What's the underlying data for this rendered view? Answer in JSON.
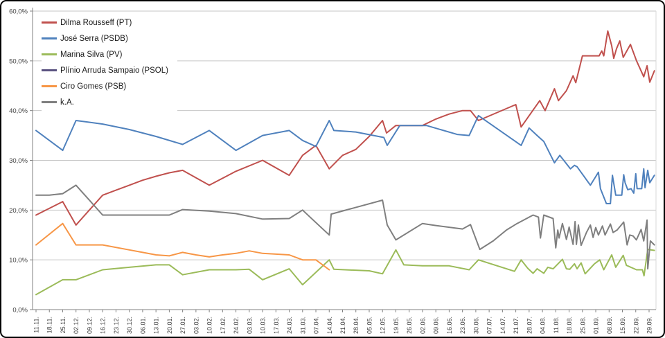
{
  "chart_data": {
    "type": "line",
    "title": "",
    "xlabel": "",
    "ylabel": "",
    "ylim": [
      0,
      60
    ],
    "ytick_step": 10,
    "ytick_labels": [
      "0,0%",
      "10,0%",
      "20,0%",
      "30,0%",
      "40,0%",
      "50,0%",
      "60,0%"
    ],
    "x_tick_rotation": -90,
    "grid": true,
    "legend_position": "top-left",
    "x_tick_labels": [
      "11.11.",
      "18.11.",
      "25.11.",
      "02.12.",
      "09.12.",
      "16.12.",
      "23.12.",
      "30.12.",
      "06.01.",
      "13.01.",
      "20.01.",
      "27.01.",
      "03.02.",
      "10.02.",
      "17.02.",
      "24.02.",
      "03.03.",
      "10.03.",
      "17.03.",
      "24.03.",
      "31.03.",
      "07.04.",
      "14.04.",
      "21.04.",
      "28.04.",
      "05.05.",
      "12.05.",
      "19.05.",
      "26.05.",
      "02.06.",
      "09.06.",
      "16.06.",
      "23.06.",
      "30.06.",
      "07.07.",
      "14.07.",
      "21.07.",
      "28.07.",
      "04.08.",
      "11.08.",
      "18.08.",
      "25.08.",
      "01.09.",
      "08.09.",
      "15.09.",
      "22.09.",
      "29.09."
    ],
    "series": [
      {
        "name": "Dilma Rousseff (PT)",
        "color": "#C0504D",
        "points": [
          [
            0,
            19
          ],
          [
            2,
            21.7
          ],
          [
            3,
            17
          ],
          [
            5,
            23
          ],
          [
            6,
            24
          ],
          [
            7,
            25
          ],
          [
            8,
            26
          ],
          [
            9,
            26.8
          ],
          [
            10,
            27.5
          ],
          [
            11,
            28
          ],
          [
            13,
            25
          ],
          [
            15,
            27.8
          ],
          [
            17,
            30
          ],
          [
            19,
            27
          ],
          [
            20,
            31
          ],
          [
            21,
            33
          ],
          [
            22,
            28.3
          ],
          [
            23,
            31
          ],
          [
            24,
            32.2
          ],
          [
            25,
            34.8
          ],
          [
            26,
            38
          ],
          [
            26.3,
            35.5
          ],
          [
            27,
            37
          ],
          [
            29,
            37
          ],
          [
            30,
            38.3
          ],
          [
            31,
            39.3
          ],
          [
            32,
            40
          ],
          [
            32.6,
            40
          ],
          [
            33.2,
            38
          ],
          [
            36,
            41.2
          ],
          [
            36.4,
            36.7
          ],
          [
            37.8,
            42
          ],
          [
            38.2,
            40
          ],
          [
            38.9,
            44.4
          ],
          [
            39.2,
            42
          ],
          [
            39.8,
            44
          ],
          [
            40.3,
            47
          ],
          [
            40.5,
            45.6
          ],
          [
            41,
            51
          ],
          [
            42.25,
            51
          ],
          [
            42.45,
            52
          ],
          [
            42.6,
            51
          ],
          [
            42.9,
            56
          ],
          [
            43.2,
            53
          ],
          [
            43.35,
            50.5
          ],
          [
            43.55,
            52.4
          ],
          [
            43.8,
            54
          ],
          [
            44.06,
            50.7
          ],
          [
            44.6,
            53.3
          ],
          [
            45.06,
            50
          ],
          [
            45.6,
            46.8
          ],
          [
            45.85,
            49
          ],
          [
            46.05,
            45.7
          ],
          [
            46.4,
            48
          ]
        ]
      },
      {
        "name": "José Serra (PSDB)",
        "color": "#4F81BD",
        "points": [
          [
            0,
            36
          ],
          [
            2,
            32
          ],
          [
            3,
            38
          ],
          [
            5,
            37.3
          ],
          [
            7,
            36.2
          ],
          [
            9,
            34.8
          ],
          [
            11,
            33.2
          ],
          [
            13,
            36
          ],
          [
            15,
            32
          ],
          [
            17,
            35
          ],
          [
            19,
            36
          ],
          [
            20,
            34
          ],
          [
            21,
            32.8
          ],
          [
            22,
            38
          ],
          [
            22.35,
            36
          ],
          [
            24,
            35.7
          ],
          [
            26.1,
            34.6
          ],
          [
            26.35,
            33
          ],
          [
            27.3,
            37
          ],
          [
            29.3,
            37
          ],
          [
            31.6,
            35.2
          ],
          [
            32.5,
            35
          ],
          [
            33.2,
            39
          ],
          [
            36.4,
            33
          ],
          [
            37,
            36.5
          ],
          [
            37.6,
            35
          ],
          [
            38.1,
            33.8
          ],
          [
            38.9,
            29.5
          ],
          [
            39.3,
            31
          ],
          [
            40.1,
            28.3
          ],
          [
            40.4,
            29
          ],
          [
            40.6,
            28.7
          ],
          [
            41.6,
            25
          ],
          [
            42.2,
            27.6
          ],
          [
            42.35,
            24.3
          ],
          [
            42.8,
            21.3
          ],
          [
            43.1,
            21.3
          ],
          [
            43.25,
            27
          ],
          [
            43.5,
            23
          ],
          [
            43.95,
            23
          ],
          [
            44.1,
            27.1
          ],
          [
            44.2,
            25.5
          ],
          [
            44.4,
            24.1
          ],
          [
            44.65,
            24.3
          ],
          [
            44.85,
            23.4
          ],
          [
            45,
            27.3
          ],
          [
            45.1,
            24.3
          ],
          [
            45.45,
            24.3
          ],
          [
            45.6,
            28.3
          ],
          [
            45.7,
            24.5
          ],
          [
            45.9,
            28
          ],
          [
            46.05,
            25.5
          ],
          [
            46.4,
            27
          ]
        ]
      },
      {
        "name": "Marina Silva (PV)",
        "color": "#9BBB59",
        "points": [
          [
            0,
            3
          ],
          [
            2,
            6
          ],
          [
            3,
            6
          ],
          [
            5,
            8
          ],
          [
            7,
            8.5
          ],
          [
            9,
            9
          ],
          [
            10,
            9
          ],
          [
            11,
            7
          ],
          [
            13,
            8
          ],
          [
            15,
            8
          ],
          [
            16,
            8.1
          ],
          [
            17,
            6
          ],
          [
            19,
            8.2
          ],
          [
            20,
            5
          ],
          [
            22,
            10
          ],
          [
            22.35,
            8.1
          ],
          [
            25,
            7.8
          ],
          [
            26,
            7.2
          ],
          [
            27,
            12
          ],
          [
            27.6,
            9
          ],
          [
            29,
            8.8
          ],
          [
            31,
            8.8
          ],
          [
            32.5,
            8
          ],
          [
            33.2,
            10
          ],
          [
            35.9,
            7.7
          ],
          [
            36.4,
            10
          ],
          [
            36.9,
            8.3
          ],
          [
            37.3,
            7.3
          ],
          [
            37.6,
            8.2
          ],
          [
            38.1,
            7.3
          ],
          [
            38.4,
            8.5
          ],
          [
            38.8,
            8.2
          ],
          [
            39.5,
            10.1
          ],
          [
            39.8,
            8.2
          ],
          [
            40.05,
            8.1
          ],
          [
            40.4,
            9.2
          ],
          [
            40.6,
            8.2
          ],
          [
            40.9,
            9.4
          ],
          [
            41.2,
            7.2
          ],
          [
            41.9,
            9.2
          ],
          [
            42.3,
            10
          ],
          [
            42.6,
            8
          ],
          [
            43.2,
            11
          ],
          [
            43.5,
            8.5
          ],
          [
            44.06,
            10.9
          ],
          [
            44.3,
            8.9
          ],
          [
            45.06,
            8
          ],
          [
            45.5,
            8
          ],
          [
            45.62,
            6.8
          ],
          [
            45.9,
            12.1
          ],
          [
            46.4,
            11.9
          ]
        ]
      },
      {
        "name": "Plínio Arruda Sampaio (PSOL)",
        "color": "#5A5280",
        "points": []
      },
      {
        "name": "Ciro Gomes (PSB)",
        "color": "#F79646",
        "points": [
          [
            0,
            13
          ],
          [
            2,
            17.3
          ],
          [
            3,
            13
          ],
          [
            5,
            13
          ],
          [
            7,
            12
          ],
          [
            8,
            11.5
          ],
          [
            9,
            11
          ],
          [
            10,
            10.8
          ],
          [
            11,
            11.5
          ],
          [
            12,
            11
          ],
          [
            13,
            10.6
          ],
          [
            14,
            11
          ],
          [
            15,
            11.3
          ],
          [
            16,
            11.8
          ],
          [
            17,
            11.3
          ],
          [
            19,
            11
          ],
          [
            20,
            10
          ],
          [
            21,
            10
          ],
          [
            22,
            8
          ]
        ]
      },
      {
        "name": "k.A.",
        "color": "#7F7F7F",
        "points": [
          [
            0,
            23
          ],
          [
            1,
            23
          ],
          [
            2,
            23.3
          ],
          [
            3,
            25
          ],
          [
            5,
            19
          ],
          [
            10,
            19
          ],
          [
            11,
            20.1
          ],
          [
            13,
            19.8
          ],
          [
            15,
            19.3
          ],
          [
            17,
            18.2
          ],
          [
            19,
            18.3
          ],
          [
            20,
            20
          ],
          [
            21,
            17.5
          ],
          [
            22,
            15
          ],
          [
            22.15,
            19.2
          ],
          [
            26,
            22
          ],
          [
            26.35,
            17
          ],
          [
            27,
            14
          ],
          [
            29,
            17.3
          ],
          [
            30,
            16.9
          ],
          [
            32,
            16.2
          ],
          [
            32.6,
            17.1
          ],
          [
            33.3,
            12.1
          ],
          [
            34.3,
            13.8
          ],
          [
            35.3,
            16
          ],
          [
            36.1,
            17.3
          ],
          [
            37.3,
            19
          ],
          [
            37.7,
            18.6
          ],
          [
            37.85,
            14.4
          ],
          [
            38.1,
            19
          ],
          [
            38.8,
            18.3
          ],
          [
            39,
            12.4
          ],
          [
            39.15,
            16
          ],
          [
            39.25,
            14.4
          ],
          [
            39.5,
            17.3
          ],
          [
            39.8,
            14.1
          ],
          [
            40,
            16.6
          ],
          [
            40.3,
            13.1
          ],
          [
            40.45,
            17.7
          ],
          [
            40.55,
            13.1
          ],
          [
            40.7,
            17
          ],
          [
            40.9,
            12.9
          ],
          [
            41.3,
            15.5
          ],
          [
            41.6,
            17
          ],
          [
            41.8,
            14.5
          ],
          [
            42,
            16.5
          ],
          [
            42.2,
            15
          ],
          [
            42.5,
            16.8
          ],
          [
            42.7,
            15
          ],
          [
            43.1,
            17.2
          ],
          [
            43.3,
            15.5
          ],
          [
            43.6,
            16
          ],
          [
            44.1,
            17.6
          ],
          [
            44.35,
            13
          ],
          [
            44.55,
            15
          ],
          [
            44.8,
            14.8
          ],
          [
            45.05,
            14
          ],
          [
            45.4,
            16.1
          ],
          [
            45.6,
            13.8
          ],
          [
            45.85,
            18
          ],
          [
            45.9,
            8.2
          ],
          [
            46.1,
            13.8
          ],
          [
            46.4,
            13
          ]
        ]
      }
    ]
  }
}
